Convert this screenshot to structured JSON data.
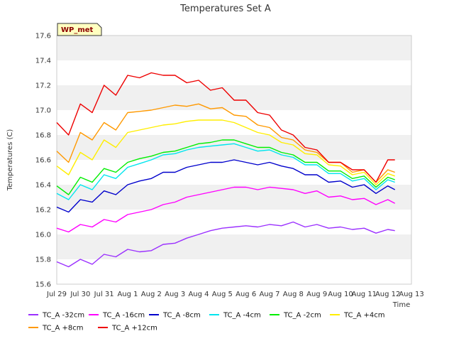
{
  "chart_data": {
    "type": "line",
    "title": "Temperatures Set A",
    "xlabel": "Time",
    "ylabel": "Temperatures (C)",
    "site_tag": "WP_met",
    "ylim": [
      15.6,
      17.6
    ],
    "yticks": [
      "15.6",
      "15.8",
      "16.0",
      "16.2",
      "16.4",
      "16.6",
      "16.8",
      "17.0",
      "17.2",
      "17.4",
      "17.6"
    ],
    "xlim": [
      0,
      15
    ],
    "xticks": [
      "Jul 29",
      "Jul 30",
      "Jul 31",
      "Aug 1",
      "Aug 2",
      "Aug 3",
      "Aug 4",
      "Aug 5",
      "Aug 6",
      "Aug 7",
      "Aug 8",
      "Aug 9",
      "Aug 10",
      "Aug 11",
      "Aug 12",
      "Aug 13"
    ],
    "x": [
      0.0,
      0.5,
      1.0,
      1.5,
      2.0,
      2.5,
      3.0,
      3.5,
      4.0,
      4.5,
      5.0,
      5.5,
      6.0,
      6.5,
      7.0,
      7.5,
      8.0,
      8.5,
      9.0,
      9.5,
      10.0,
      10.5,
      11.0,
      11.5,
      12.0,
      12.5,
      13.0,
      13.5,
      14.0,
      14.3
    ],
    "series": [
      {
        "name": "TC_A -32cm",
        "color": "#9b30ff",
        "values": [
          15.78,
          15.74,
          15.8,
          15.76,
          15.84,
          15.82,
          15.88,
          15.86,
          15.87,
          15.92,
          15.93,
          15.97,
          16.0,
          16.03,
          16.05,
          16.06,
          16.07,
          16.06,
          16.08,
          16.07,
          16.1,
          16.06,
          16.08,
          16.05,
          16.06,
          16.04,
          16.05,
          16.01,
          16.04,
          16.03
        ]
      },
      {
        "name": "TC_A -16cm",
        "color": "#ff00ff",
        "values": [
          16.05,
          16.02,
          16.08,
          16.06,
          16.12,
          16.1,
          16.16,
          16.18,
          16.2,
          16.24,
          16.26,
          16.3,
          16.32,
          16.34,
          16.36,
          16.38,
          16.38,
          16.36,
          16.38,
          16.37,
          16.36,
          16.33,
          16.35,
          16.3,
          16.31,
          16.28,
          16.29,
          16.24,
          16.28,
          16.25
        ]
      },
      {
        "name": "TC_A -8cm",
        "color": "#0000cc",
        "values": [
          16.22,
          16.18,
          16.28,
          16.26,
          16.35,
          16.32,
          16.4,
          16.43,
          16.45,
          16.5,
          16.5,
          16.54,
          16.56,
          16.58,
          16.58,
          16.6,
          16.58,
          16.56,
          16.58,
          16.55,
          16.53,
          16.48,
          16.48,
          16.42,
          16.43,
          16.38,
          16.4,
          16.33,
          16.39,
          16.36
        ]
      },
      {
        "name": "TC_A -4cm",
        "color": "#00e5ee",
        "values": [
          16.33,
          16.28,
          16.4,
          16.36,
          16.48,
          16.45,
          16.54,
          16.57,
          16.6,
          16.64,
          16.65,
          16.68,
          16.7,
          16.71,
          16.72,
          16.73,
          16.7,
          16.67,
          16.68,
          16.64,
          16.62,
          16.56,
          16.56,
          16.49,
          16.49,
          16.43,
          16.45,
          16.36,
          16.44,
          16.42
        ]
      },
      {
        "name": "TC_A -2cm",
        "color": "#00ee00",
        "values": [
          16.39,
          16.32,
          16.46,
          16.42,
          16.53,
          16.5,
          16.58,
          16.61,
          16.63,
          16.66,
          16.67,
          16.7,
          16.73,
          16.74,
          16.76,
          16.76,
          16.73,
          16.7,
          16.7,
          16.66,
          16.64,
          16.58,
          16.58,
          16.51,
          16.51,
          16.45,
          16.47,
          16.38,
          16.46,
          16.44
        ]
      },
      {
        "name": "TC_A +4cm",
        "color": "#ffee00",
        "values": [
          16.55,
          16.48,
          16.66,
          16.6,
          16.76,
          16.7,
          16.82,
          16.84,
          16.86,
          16.88,
          16.89,
          16.91,
          16.92,
          16.92,
          16.92,
          16.9,
          16.86,
          16.82,
          16.8,
          16.74,
          16.72,
          16.65,
          16.64,
          16.56,
          16.55,
          16.48,
          16.5,
          16.4,
          16.49,
          16.47
        ]
      },
      {
        "name": "TC_A +8cm",
        "color": "#ff9900",
        "values": [
          16.67,
          16.58,
          16.82,
          16.76,
          16.9,
          16.84,
          16.98,
          16.99,
          17.0,
          17.02,
          17.04,
          17.03,
          17.05,
          17.01,
          17.02,
          16.96,
          16.95,
          16.88,
          16.86,
          16.78,
          16.76,
          16.68,
          16.66,
          16.58,
          16.58,
          16.5,
          16.52,
          16.42,
          16.52,
          16.5
        ]
      },
      {
        "name": "TC_A +12cm",
        "color": "#ee0000",
        "values": [
          16.9,
          16.8,
          17.05,
          16.98,
          17.2,
          17.12,
          17.28,
          17.26,
          17.3,
          17.28,
          17.28,
          17.22,
          17.24,
          17.16,
          17.18,
          17.08,
          17.08,
          16.98,
          16.96,
          16.84,
          16.8,
          16.7,
          16.68,
          16.58,
          16.58,
          16.52,
          16.52,
          16.42,
          16.6,
          16.6
        ]
      }
    ],
    "legend_position": "bottom",
    "grid": true
  }
}
